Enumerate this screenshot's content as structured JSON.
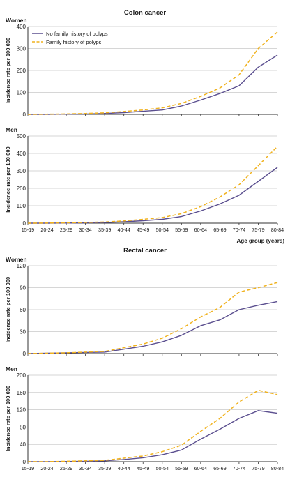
{
  "colors": {
    "no_history": "#5b4f8f",
    "history": "#f0b21e",
    "grid": "#c8c8c8",
    "axis": "#333333"
  },
  "headings": {
    "colon": "Colon cancer",
    "rectal": "Rectal cancer"
  },
  "x_axis_label": "Age group (years)",
  "chart_data": [
    {
      "type": "line",
      "section": "Colon cancer",
      "panel": "Women",
      "ylabel": "Incidence rate per 100 000",
      "ylim": [
        0,
        400
      ],
      "yticks": [
        0,
        100,
        200,
        300,
        400
      ],
      "categories": [
        "15-19",
        "20-24",
        "25-29",
        "30-34",
        "35-39",
        "40-44",
        "45-49",
        "50-54",
        "55-59",
        "60-64",
        "65-69",
        "70-74",
        "75-79",
        "80-84"
      ],
      "legend": "top-left",
      "grid": true,
      "series": [
        {
          "name": "No family history of polyps",
          "style": "solid",
          "values": [
            0,
            0,
            1,
            2,
            4,
            8,
            14,
            20,
            38,
            65,
            95,
            130,
            215,
            270
          ]
        },
        {
          "name": "Family history of polyps",
          "style": "dashed",
          "values": [
            0,
            1,
            2,
            4,
            7,
            13,
            20,
            30,
            50,
            82,
            120,
            180,
            300,
            375
          ]
        }
      ]
    },
    {
      "type": "line",
      "section": "Colon cancer",
      "panel": "Men",
      "ylabel": "Incidence rate per 100 000",
      "ylim": [
        0,
        500
      ],
      "yticks": [
        0,
        100,
        200,
        300,
        400,
        500
      ],
      "categories": [
        "15-19",
        "20-24",
        "25-29",
        "30-34",
        "35-39",
        "40-44",
        "45-49",
        "50-54",
        "55-59",
        "60-64",
        "65-69",
        "70-74",
        "75-79",
        "80-84"
      ],
      "grid": true,
      "series": [
        {
          "name": "No family history of polyps",
          "style": "solid",
          "values": [
            0,
            0,
            1,
            2,
            4,
            8,
            14,
            22,
            38,
            70,
            110,
            160,
            240,
            320
          ]
        },
        {
          "name": "Family history of polyps",
          "style": "dashed",
          "values": [
            0,
            1,
            2,
            4,
            7,
            13,
            22,
            32,
            55,
            95,
            150,
            220,
            330,
            440
          ]
        }
      ]
    },
    {
      "type": "line",
      "section": "Rectal cancer",
      "panel": "Women",
      "ylabel": "Incidence rate per 100 000",
      "ylim": [
        0,
        120
      ],
      "yticks": [
        0,
        30,
        60,
        90,
        120
      ],
      "categories": [
        "15-19",
        "20-24",
        "25-29",
        "30-34",
        "35-39",
        "40-44",
        "45-49",
        "50-54",
        "55-59",
        "60-64",
        "65-69",
        "70-74",
        "75-79",
        "80-84"
      ],
      "grid": true,
      "series": [
        {
          "name": "No family history of polyps",
          "style": "solid",
          "values": [
            0,
            0.5,
            1,
            1.5,
            2,
            6,
            10,
            16,
            25,
            38,
            46,
            60,
            66,
            71
          ]
        },
        {
          "name": "Family history of polyps",
          "style": "dashed",
          "values": [
            0,
            0.5,
            1,
            2,
            3,
            8,
            13,
            21,
            34,
            50,
            63,
            84,
            90,
            97
          ]
        }
      ]
    },
    {
      "type": "line",
      "section": "Rectal cancer",
      "panel": "Men",
      "ylabel": "Incidence rate per 100 000",
      "ylim": [
        0,
        200
      ],
      "yticks": [
        0,
        40,
        80,
        120,
        160,
        200
      ],
      "categories": [
        "15-19",
        "20-24",
        "25-29",
        "30-34",
        "35-39",
        "40-44",
        "45-49",
        "50-54",
        "55-59",
        "60-64",
        "65-69",
        "70-74",
        "75-79",
        "80-84"
      ],
      "grid": true,
      "series": [
        {
          "name": "No family history of polyps",
          "style": "solid",
          "values": [
            0,
            0,
            0.5,
            1,
            2,
            5,
            9,
            16,
            27,
            52,
            75,
            100,
            118,
            112
          ]
        },
        {
          "name": "Family history of polyps",
          "style": "dashed",
          "values": [
            0,
            0,
            1,
            2,
            3,
            8,
            13,
            23,
            38,
            70,
            100,
            138,
            165,
            155
          ]
        }
      ]
    }
  ]
}
